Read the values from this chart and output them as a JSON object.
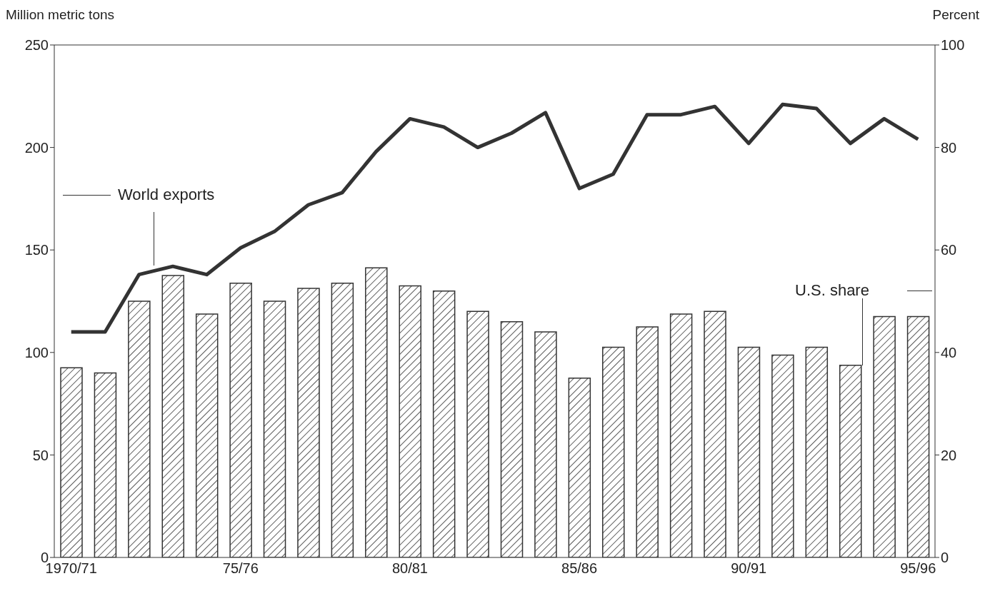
{
  "chart_data": {
    "type": "bar",
    "ylabel": "Million metric tons",
    "y2label": "Percent",
    "categories": [
      "1970/71",
      null,
      null,
      null,
      null,
      "75/76",
      null,
      null,
      null,
      null,
      "80/81",
      null,
      null,
      null,
      null,
      "85/86",
      null,
      null,
      null,
      null,
      "90/91",
      null,
      null,
      null,
      null,
      "95/96"
    ],
    "series": [
      {
        "name": "U.S. share",
        "axis": "y2",
        "color": "#333333",
        "values": [
          37,
          36,
          50,
          55,
          47.5,
          53.5,
          50,
          52.5,
          53.5,
          56.5,
          53,
          52,
          48,
          46,
          44,
          35,
          41,
          45,
          47.5,
          48,
          41,
          39.5,
          41,
          37.5,
          47,
          47
        ]
      },
      {
        "name": "World exports",
        "type": "line",
        "axis": "y",
        "color": "#333333",
        "values": [
          110,
          110,
          138,
          142,
          138,
          151,
          159,
          172,
          178,
          198,
          214,
          210,
          200,
          207,
          217,
          180,
          187,
          216,
          216,
          220,
          202,
          221,
          219,
          202,
          214,
          204
        ]
      }
    ],
    "ylim": [
      0,
      250
    ],
    "yticks": [
      0,
      50,
      100,
      150,
      200,
      250
    ],
    "y2lim": [
      0,
      100
    ],
    "y2ticks": [
      0,
      20,
      40,
      60,
      80,
      100
    ],
    "marker": "none",
    "line_style": "solid"
  }
}
